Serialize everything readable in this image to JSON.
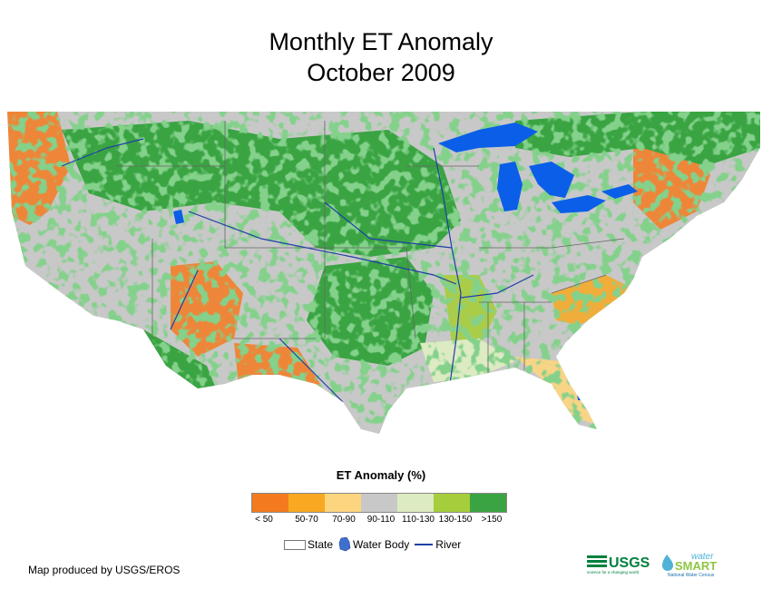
{
  "title_line1": "Monthly ET Anomaly",
  "title_line2": "October 2009",
  "legend": {
    "title": "ET Anomaly (%)",
    "classes": [
      {
        "label": "< 50",
        "color": "#f47a20"
      },
      {
        "label": "50-70",
        "color": "#f8a821"
      },
      {
        "label": "70-90",
        "color": "#fdd57e"
      },
      {
        "label": "90-110",
        "color": "#c8c8c8"
      },
      {
        "label": "110-130",
        "color": "#dcebc1"
      },
      {
        "label": "130-150",
        "color": "#a6cd3b"
      },
      {
        "label": ">150",
        "color": "#3aa442"
      }
    ],
    "state_label": "State",
    "water_label": "Water Body",
    "river_label": "River"
  },
  "colors": {
    "water": "#0b5ee8",
    "river": "#1f3fa6",
    "state_line": "#666666"
  },
  "credit": "Map produced by USGS/EROS",
  "logos": {
    "usgs": "USGS",
    "usgs_tagline": "science for a changing world",
    "ws_top": "water",
    "ws_main": "SMART",
    "ws_sub": "National Water Census"
  }
}
